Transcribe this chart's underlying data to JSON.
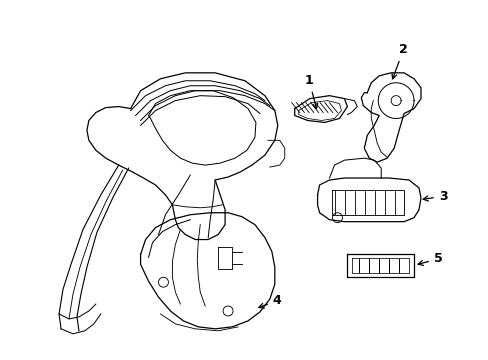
{
  "background_color": "#ffffff",
  "line_color": "#000000",
  "figsize": [
    4.89,
    3.6
  ],
  "dpi": 100,
  "lw": 0.9
}
